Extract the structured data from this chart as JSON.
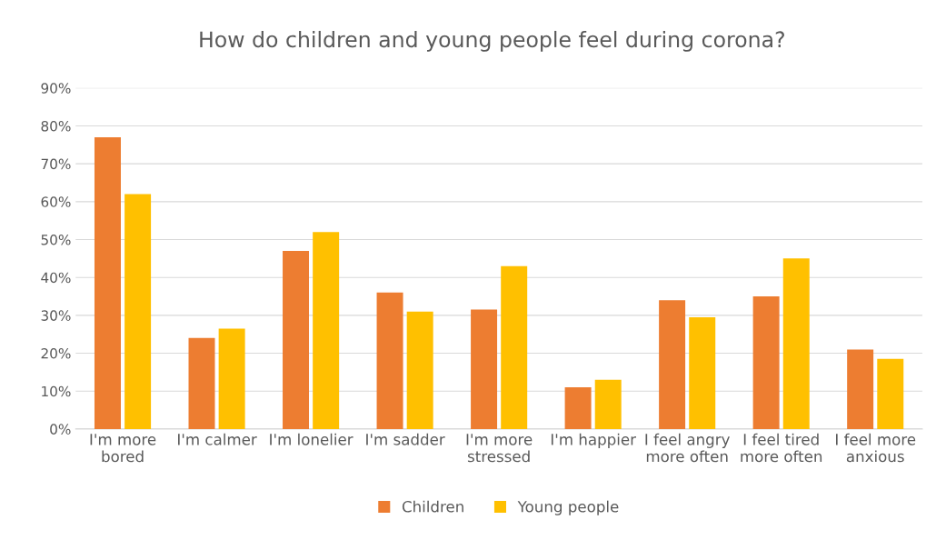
{
  "chart_data": {
    "type": "bar",
    "title": "How do children and young people feel during corona?",
    "categories": [
      "I'm more\nbored",
      "I'm calmer",
      "I'm lonelier",
      "I'm sadder",
      "I'm more\nstressed",
      "I'm happier",
      "I feel angry\nmore often",
      "I feel tired\nmore often",
      "I feel more\nanxious"
    ],
    "series": [
      {
        "name": "Children",
        "color": "#ed7d31",
        "values": [
          77,
          24,
          47,
          36,
          31.5,
          11,
          34,
          35,
          21
        ]
      },
      {
        "name": "Young people",
        "color": "#ffc000",
        "values": [
          62,
          26.5,
          52,
          31,
          43,
          13,
          29.5,
          45,
          18.5
        ]
      }
    ],
    "ylim": [
      0,
      90
    ],
    "yticks": [
      {
        "value": 0,
        "label": "0%"
      },
      {
        "value": 10,
        "label": "10%"
      },
      {
        "value": 20,
        "label": "20%"
      },
      {
        "value": 30,
        "label": "30%"
      },
      {
        "value": 40,
        "label": "40%"
      },
      {
        "value": 50,
        "label": "50%"
      },
      {
        "value": 60,
        "label": "60%"
      },
      {
        "value": 70,
        "label": "70%"
      },
      {
        "value": 80,
        "label": "80%"
      },
      {
        "value": 90,
        "label": "90%"
      }
    ],
    "grid": "y",
    "legend": "bottom"
  }
}
